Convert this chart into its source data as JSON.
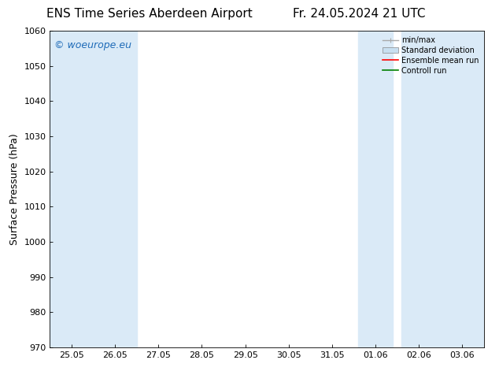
{
  "title_left": "ENS Time Series Aberdeen Airport",
  "title_right": "Fr. 24.05.2024 21 UTC",
  "ylabel": "Surface Pressure (hPa)",
  "ylim": [
    970,
    1060
  ],
  "yticks": [
    970,
    980,
    990,
    1000,
    1010,
    1020,
    1030,
    1040,
    1050,
    1060
  ],
  "xtick_labels": [
    "25.05",
    "26.05",
    "27.05",
    "28.05",
    "29.05",
    "30.05",
    "31.05",
    "01.06",
    "02.06",
    "03.06"
  ],
  "background_color": "#ffffff",
  "plot_bg_color": "#ffffff",
  "shaded_band_color": "#daeaf7",
  "watermark_text": "© woeurope.eu",
  "watermark_color": "#1e6bb8",
  "legend_entries": [
    {
      "label": "min/max"
    },
    {
      "label": "Standard deviation"
    },
    {
      "label": "Ensemble mean run"
    },
    {
      "label": "Controll run"
    }
  ],
  "legend_colors": [
    "#aaaaaa",
    "#c8dff0",
    "#ff0000",
    "#008000"
  ],
  "title_fontsize": 11,
  "axis_fontsize": 9,
  "tick_fontsize": 8,
  "legend_fontsize": 7,
  "watermark_fontsize": 9
}
